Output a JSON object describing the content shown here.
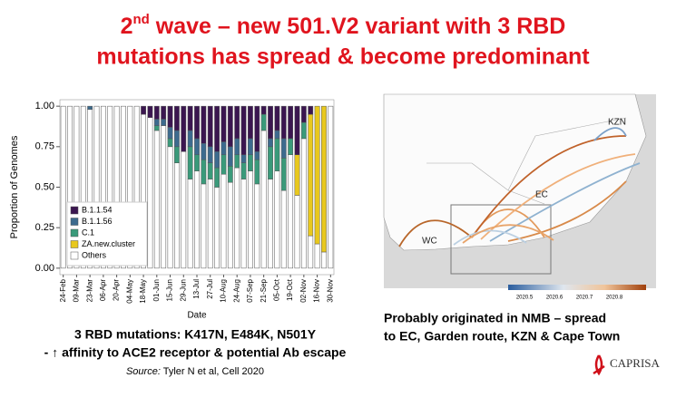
{
  "title": {
    "number": "2",
    "sup": "nd",
    "rest": " wave – new 501.V2 variant with 3 RBD",
    "line2": "mutations has spread & become predominant"
  },
  "chart_data": {
    "type": "stacked-bar",
    "y_label": "Proportion of Genomes",
    "x_label": "Date",
    "categories": [
      "24-Feb",
      null,
      "09-Mar",
      null,
      "23-Mar",
      null,
      "06-Apr",
      null,
      "20-Apr",
      null,
      "04-May",
      null,
      "18-May",
      null,
      "01-Jun",
      null,
      "15-Jun",
      null,
      "29-Jun",
      null,
      "13-Jul",
      null,
      "27-Jul",
      null,
      "10-Aug",
      null,
      "24-Aug",
      null,
      "07-Sep",
      null,
      "21-Sep",
      null,
      "05-Oct",
      null,
      "19-Oct",
      null,
      "02-Nov",
      null,
      "16-Nov",
      null,
      "30-Nov"
    ],
    "series": [
      {
        "name": "Others",
        "color": "#ffffff",
        "values": [
          1,
          1,
          1,
          1,
          0.98,
          1,
          1,
          1,
          1,
          1,
          1,
          1,
          0.95,
          0.93,
          0.85,
          0.88,
          0.75,
          0.65,
          0.72,
          0.55,
          0.6,
          0.52,
          0.55,
          0.5,
          0.58,
          0.53,
          0.62,
          0.55,
          0.6,
          0.52,
          0.85,
          0.55,
          0.6,
          0.48,
          0.7,
          0.45,
          0.8,
          0.2,
          0.15,
          0.1,
          1
        ]
      },
      {
        "name": "ZA.new.cluster",
        "color": "#e8c81e",
        "values": [
          0,
          0,
          0,
          0,
          0,
          0,
          0,
          0,
          0,
          0,
          0,
          0,
          0,
          0,
          0,
          0,
          0,
          0,
          0,
          0,
          0,
          0,
          0,
          0,
          0,
          0,
          0,
          0,
          0,
          0,
          0,
          0,
          0,
          0,
          0,
          0.25,
          0,
          0.75,
          0.85,
          0.9,
          0
        ]
      },
      {
        "name": "C.1",
        "color": "#3a9a7a",
        "values": [
          0,
          0,
          0,
          0,
          0,
          0,
          0,
          0,
          0,
          0,
          0,
          0,
          0,
          0,
          0.03,
          0,
          0.05,
          0.1,
          0,
          0.2,
          0.1,
          0.15,
          0.1,
          0.12,
          0.12,
          0.1,
          0.08,
          0.1,
          0.1,
          0.15,
          0.1,
          0.2,
          0.2,
          0.2,
          0.1,
          0,
          0.1,
          0,
          0,
          0,
          0
        ]
      },
      {
        "name": "B.1.1.56",
        "color": "#3d6b8e",
        "values": [
          0,
          0,
          0,
          0,
          0.02,
          0,
          0,
          0,
          0,
          0,
          0,
          0,
          0,
          0,
          0.04,
          0.04,
          0.07,
          0.1,
          0,
          0.1,
          0.1,
          0.1,
          0.1,
          0.1,
          0.08,
          0.12,
          0.1,
          0.05,
          0.1,
          0.05,
          0,
          0.05,
          0.05,
          0.12,
          0,
          0,
          0,
          0,
          0,
          0,
          0
        ]
      },
      {
        "name": "B.1.1.54",
        "color": "#3b1650",
        "values": [
          0,
          0,
          0,
          0,
          0,
          0,
          0,
          0,
          0,
          0,
          0,
          0,
          0.05,
          0.07,
          0.08,
          0.08,
          0.13,
          0.15,
          0.28,
          0.15,
          0.2,
          0.23,
          0.25,
          0.28,
          0.22,
          0.25,
          0.2,
          0.3,
          0.2,
          0.28,
          0.05,
          0.2,
          0.15,
          0.2,
          0.2,
          0.3,
          0.1,
          0.05,
          0,
          0,
          0
        ]
      }
    ],
    "ylim": [
      -0.04,
      1.04
    ],
    "yticks": [
      {
        "value": 0,
        "label": "0.00"
      },
      {
        "value": 0.25,
        "label": "0.25"
      },
      {
        "value": 0.5,
        "label": "0.50"
      },
      {
        "value": 0.75,
        "label": "0.75"
      },
      {
        "value": 1,
        "label": "1.00"
      }
    ]
  },
  "left_caption": {
    "line1": "3 RBD mutations:  K417N,  E484K,  N501Y",
    "line2": "- ↑ affinity to ACE2 receptor & potential Ab escape",
    "source_label": "Source:",
    "source_text": " Tyler N et al, Cell 2020"
  },
  "map": {
    "labels": [
      "WC",
      "EC",
      "KZN"
    ],
    "colorbar": [
      "2020.5",
      "2020.6",
      "2020.7",
      "2020.8"
    ]
  },
  "right_caption": {
    "line1": "Probably originated in NMB – spread",
    "line2": "to EC, Garden route, KZN & Cape Town"
  },
  "logo": "CAPRISA"
}
